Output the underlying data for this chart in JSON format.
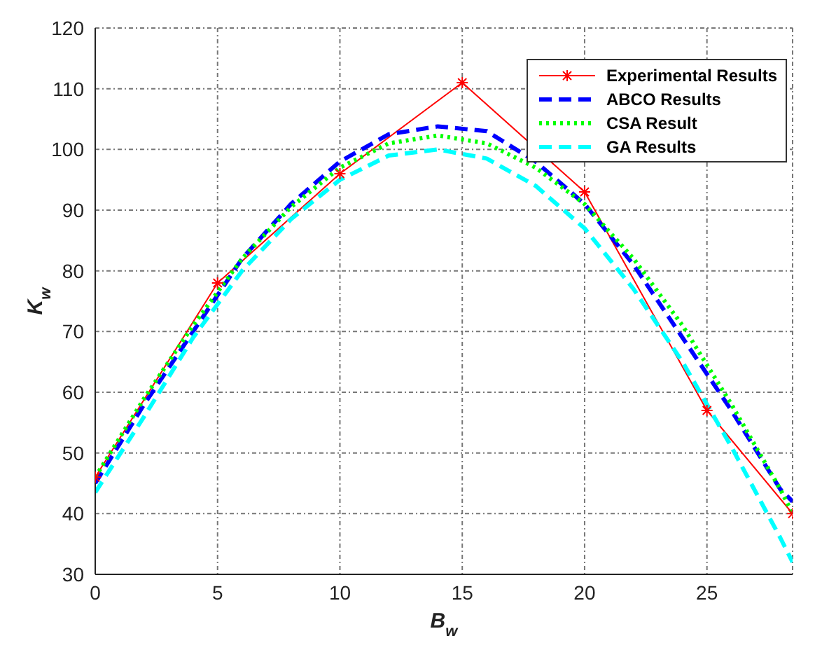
{
  "chart_data": {
    "type": "line",
    "xlabel": "B$_{w}$",
    "ylabel": "K$_{w}$",
    "xlim": [
      0,
      28.5
    ],
    "xticks": [
      0,
      5,
      10,
      15,
      20,
      25
    ],
    "ylim": [
      30,
      120
    ],
    "yticks": [
      30,
      40,
      50,
      60,
      70,
      80,
      90,
      100,
      110,
      120
    ],
    "grid": true,
    "legend": "top right",
    "series": [
      {
        "name": "Experimental Results",
        "color": "#ff0000",
        "marker": "cross",
        "line_style": "solid",
        "x": [
          0,
          5,
          10,
          15,
          20,
          25,
          28.5
        ],
        "values": [
          46,
          78,
          96,
          111,
          93,
          57,
          40
        ]
      },
      {
        "name": "ABCO Results",
        "color": "#0000ff",
        "marker": "none",
        "line_style": "dashed",
        "x": [
          0,
          2,
          4,
          6,
          8,
          10,
          12,
          14,
          16,
          18,
          20,
          22,
          24,
          26,
          28,
          28.5
        ],
        "values": [
          45,
          58,
          70,
          82,
          91,
          98,
          102.5,
          103.8,
          103,
          98,
          91,
          81,
          69,
          57,
          44,
          42
        ]
      },
      {
        "name": "CSA Result",
        "color": "#00ff00",
        "marker": "none",
        "line_style": "dotted",
        "x": [
          0,
          2,
          4,
          6,
          8,
          10,
          12,
          14,
          16,
          18,
          20,
          22,
          24,
          26,
          28,
          28.5
        ],
        "values": [
          46,
          59,
          71,
          82,
          90.5,
          97,
          101,
          102.3,
          101,
          97,
          91,
          82,
          71,
          58,
          44,
          40
        ]
      },
      {
        "name": "GA Results",
        "color": "#00ffff",
        "marker": "none",
        "line_style": "dashed",
        "x": [
          0,
          2,
          4,
          6,
          8,
          10,
          12,
          14,
          16,
          18,
          20,
          22,
          24,
          26,
          28,
          28.5
        ],
        "values": [
          43.5,
          56,
          69,
          80,
          88.5,
          95,
          99,
          100,
          98.5,
          94,
          87,
          77,
          65,
          51,
          36,
          32
        ]
      }
    ]
  }
}
